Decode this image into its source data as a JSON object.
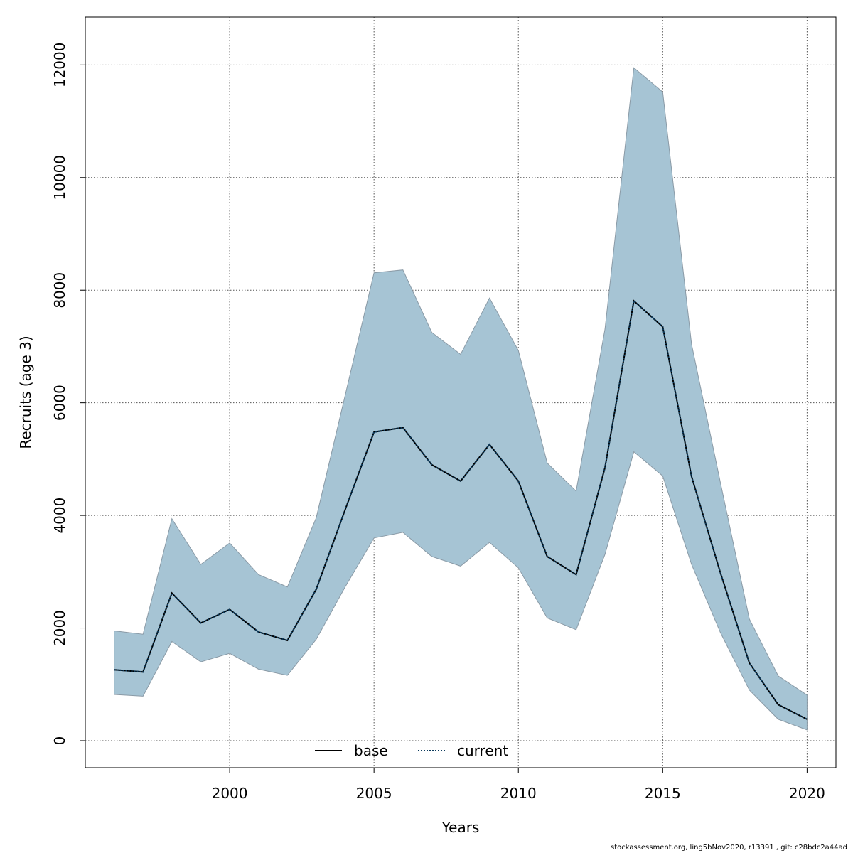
{
  "chart_data": {
    "type": "line",
    "title": "",
    "xlabel": "Years",
    "ylabel": "Recruits (age 3)",
    "xlim": [
      1995.0,
      2021.0
    ],
    "ylim": [
      -480,
      12850
    ],
    "x_ticks": [
      2000,
      2005,
      2010,
      2015,
      2020
    ],
    "y_ticks": [
      0,
      2000,
      4000,
      6000,
      8000,
      10000,
      12000
    ],
    "grid": true,
    "legend_position": "bottom-center",
    "colors": {
      "band_fill": "#a6c4d4",
      "band_stroke": "#8a9aa6",
      "base_line": "#000000",
      "current_line": "#0b3a5c",
      "grid": "#555555"
    },
    "x": [
      1996,
      1997,
      1998,
      1999,
      2000,
      2001,
      2002,
      2003,
      2004,
      2005,
      2006,
      2007,
      2008,
      2009,
      2010,
      2011,
      2012,
      2013,
      2014,
      2015,
      2016,
      2017,
      2018,
      2019,
      2020
    ],
    "band": {
      "upper": [
        1950,
        1890,
        3940,
        3130,
        3510,
        2950,
        2730,
        3960,
        6130,
        8310,
        8360,
        7250,
        6860,
        7860,
        6930,
        4930,
        4430,
        7310,
        11950,
        11520,
        7040,
        4580,
        2160,
        1150,
        810
      ],
      "lower": [
        820,
        790,
        1760,
        1400,
        1550,
        1270,
        1160,
        1800,
        2730,
        3600,
        3700,
        3270,
        3100,
        3520,
        3070,
        2180,
        1970,
        3310,
        5130,
        4700,
        3130,
        1920,
        900,
        380,
        190
      ]
    },
    "series": [
      {
        "name": "base",
        "style": "solid",
        "values": [
          1260,
          1220,
          2620,
          2090,
          2330,
          1930,
          1780,
          2690,
          4100,
          5480,
          5560,
          4900,
          4610,
          5260,
          4610,
          3270,
          2950,
          4850,
          7810,
          7350,
          4690,
          2980,
          1380,
          640,
          380
        ]
      },
      {
        "name": "current",
        "style": "dotted",
        "values": [
          1260,
          1220,
          2620,
          2090,
          2330,
          1930,
          1780,
          2690,
          4100,
          5480,
          5560,
          4900,
          4610,
          5260,
          4610,
          3270,
          2950,
          4850,
          7810,
          7350,
          4690,
          2980,
          1380,
          640,
          380
        ]
      }
    ]
  },
  "footer_text": "stockassessment.org, ling5bNov2020, r13391 , git: c28bdc2a44ad"
}
